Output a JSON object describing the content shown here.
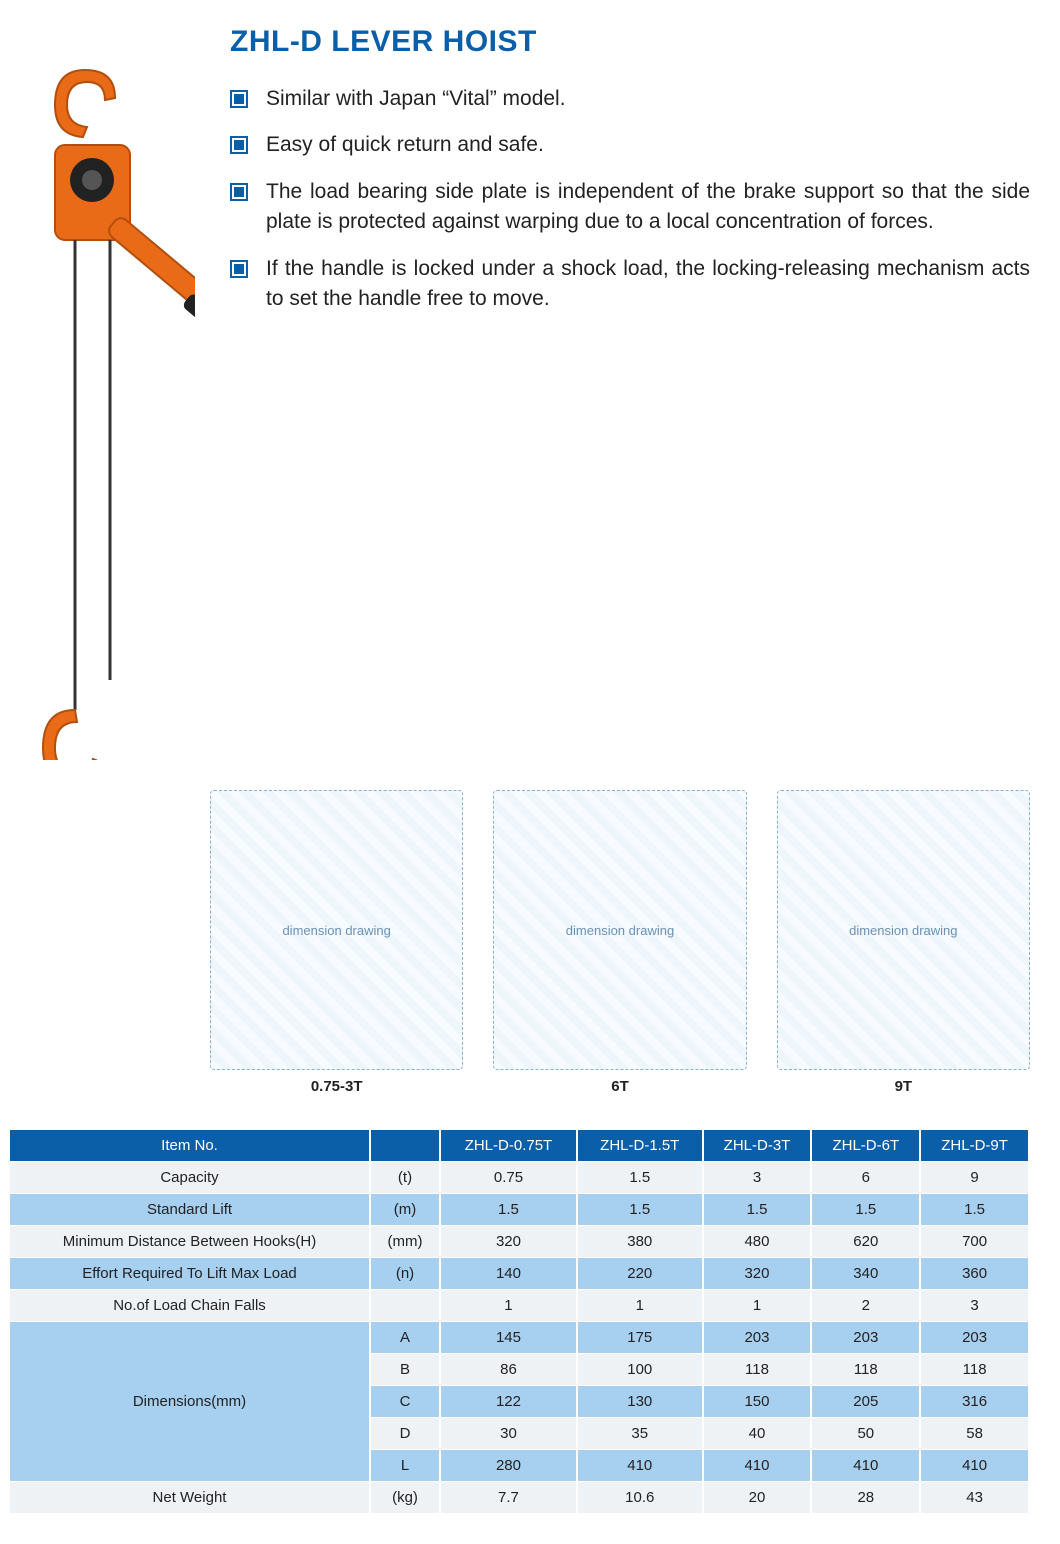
{
  "colors": {
    "title": "#0b5fa8",
    "bullet_marker": "#0b5fa8",
    "table_header_bg": "#0b5fa8",
    "table_header_fg": "#ffffff",
    "row_alt1_bg": "#eef2f5",
    "row_alt2_bg": "#a7cfef",
    "dim_label_bg": "#a7cfef",
    "text": "#222222"
  },
  "title": "ZHL-D LEVER HOIST",
  "bullets": [
    "Similar with Japan “Vital” model.",
    "Easy of quick return and safe.",
    "The load bearing side plate is independent of the brake support so that the side plate is protected against warping due to a local concentration of forces.",
    "If the handle is locked under a shock load, the locking-releasing mechanism acts to set the handle free to move."
  ],
  "diagrams": [
    {
      "label": "0.75-3T",
      "note": "dimension drawing"
    },
    {
      "label": "6T",
      "note": "dimension drawing"
    },
    {
      "label": "9T",
      "note": "dimension drawing"
    }
  ],
  "table": {
    "header": {
      "item_no": "Item No.",
      "models": [
        "ZHL-D-0.75T",
        "ZHL-D-1.5T",
        "ZHL-D-3T",
        "ZHL-D-6T",
        "ZHL-D-9T"
      ]
    },
    "rows": [
      {
        "label": "Capacity",
        "unit": "(t)",
        "values": [
          "0.75",
          "1.5",
          "3",
          "6",
          "9"
        ],
        "band": "alt1"
      },
      {
        "label": "Standard Lift",
        "unit": "(m)",
        "values": [
          "1.5",
          "1.5",
          "1.5",
          "1.5",
          "1.5"
        ],
        "band": "alt2"
      },
      {
        "label": "Minimum Distance Between Hooks(H)",
        "unit": "(mm)",
        "values": [
          "320",
          "380",
          "480",
          "620",
          "700"
        ],
        "band": "alt1"
      },
      {
        "label": "Effort Required To Lift Max Load",
        "unit": "(n)",
        "values": [
          "140",
          "220",
          "320",
          "340",
          "360"
        ],
        "band": "alt2"
      },
      {
        "label": "No.of Load Chain Falls",
        "unit": "",
        "values": [
          "1",
          "1",
          "1",
          "2",
          "3"
        ],
        "band": "alt1"
      }
    ],
    "dimensions": {
      "group_label": "Dimensions(mm)",
      "rows": [
        {
          "label": "A",
          "values": [
            "145",
            "175",
            "203",
            "203",
            "203"
          ],
          "band": "alt2"
        },
        {
          "label": "B",
          "values": [
            "86",
            "100",
            "118",
            "118",
            "118"
          ],
          "band": "alt1"
        },
        {
          "label": "C",
          "values": [
            "122",
            "130",
            "150",
            "205",
            "316"
          ],
          "band": "alt2"
        },
        {
          "label": "D",
          "values": [
            "30",
            "35",
            "40",
            "50",
            "58"
          ],
          "band": "alt1"
        },
        {
          "label": "L",
          "values": [
            "280",
            "410",
            "410",
            "410",
            "410"
          ],
          "band": "alt2"
        }
      ]
    },
    "net_weight": {
      "label": "Net Weight",
      "unit": "(kg)",
      "values": [
        "7.7",
        "10.6",
        "20",
        "28",
        "43"
      ],
      "band": "alt1"
    }
  }
}
